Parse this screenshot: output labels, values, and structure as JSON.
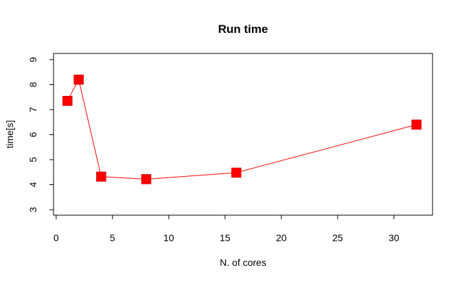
{
  "chart_data": {
    "type": "line",
    "title": "Run time",
    "xlabel": "N. of cores",
    "ylabel": "time[s]",
    "xlim": [
      0,
      33
    ],
    "ylim": [
      3,
      9
    ],
    "xticks": [
      0,
      5,
      10,
      15,
      20,
      25,
      30
    ],
    "yticks": [
      3,
      4,
      5,
      6,
      7,
      8,
      9
    ],
    "grid": false,
    "color": "#ff0000",
    "marker": "square",
    "series": [
      {
        "x": [
          1,
          2,
          4,
          8,
          16,
          32
        ],
        "y": [
          7.35,
          8.2,
          4.32,
          4.22,
          4.48,
          6.4
        ]
      }
    ]
  }
}
